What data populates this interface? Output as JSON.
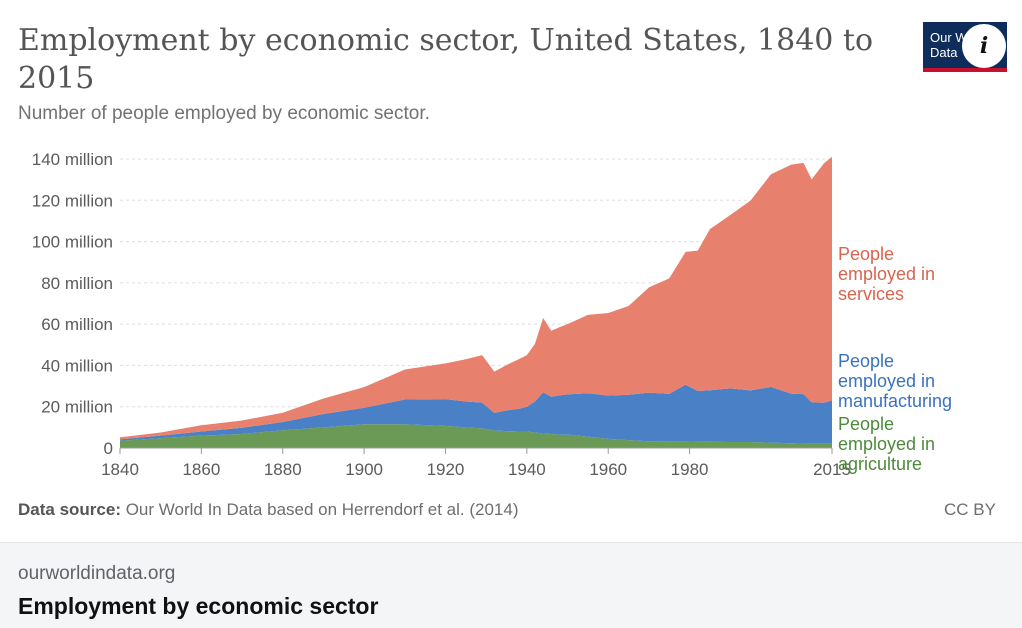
{
  "page": {
    "domain": "ourworldindata.org",
    "link_title": "Employment by economic sector"
  },
  "header": {
    "title": "Employment by economic sector, United States, 1840 to 2015",
    "subtitle": "Number of people employed by economic sector.",
    "logo_text": "Our World in Data",
    "info_icon": "info-icon",
    "info_label": "i"
  },
  "footer": {
    "source_label": "Data source:",
    "source_text": " Our World In Data based on Herrendorf et al. (2014)",
    "license": "CC BY"
  },
  "colors": {
    "services": "#e8806e",
    "manufacturing": "#4a80c6",
    "agriculture": "#6b9a57",
    "services_label": "#d8654f",
    "manufacturing_label": "#3a72be",
    "agriculture_label": "#4e8a3c",
    "axis_text": "#5b5b5b",
    "grid": "#dddddd"
  },
  "chart_data": {
    "type": "area",
    "stacked": true,
    "title": "Employment by economic sector, United States, 1840 to 2015",
    "subtitle": "Number of people employed by economic sector.",
    "xlabel": "",
    "ylabel": "",
    "xlim": [
      1840,
      2015
    ],
    "ylim": [
      0,
      140
    ],
    "y_unit": "million",
    "grid": true,
    "x_ticks": [
      {
        "value": 1840,
        "label": "1840"
      },
      {
        "value": 1860,
        "label": "1860"
      },
      {
        "value": 1880,
        "label": "1880"
      },
      {
        "value": 1900,
        "label": "1900"
      },
      {
        "value": 1920,
        "label": "1920"
      },
      {
        "value": 1940,
        "label": "1940"
      },
      {
        "value": 1960,
        "label": "1960"
      },
      {
        "value": 1980,
        "label": "1980"
      },
      {
        "value": 2015,
        "label": "2015"
      }
    ],
    "y_ticks": [
      {
        "value": 0,
        "label": "0"
      },
      {
        "value": 20,
        "label": "20 million"
      },
      {
        "value": 40,
        "label": "40 million"
      },
      {
        "value": 60,
        "label": "60 million"
      },
      {
        "value": 80,
        "label": "80 million"
      },
      {
        "value": 100,
        "label": "100 million"
      },
      {
        "value": 120,
        "label": "120 million"
      },
      {
        "value": 140,
        "label": "140 million"
      }
    ],
    "x": [
      1840,
      1850,
      1860,
      1870,
      1880,
      1890,
      1900,
      1910,
      1920,
      1925,
      1929,
      1932,
      1935,
      1938,
      1940,
      1942,
      1944,
      1946,
      1948,
      1950,
      1955,
      1960,
      1965,
      1970,
      1975,
      1979,
      1982,
      1985,
      1990,
      1995,
      2000,
      2005,
      2008,
      2010,
      2013,
      2015
    ],
    "series": [
      {
        "name": "People employed in agriculture",
        "label_lines": [
          "People",
          "employed in",
          "agriculture"
        ],
        "values": [
          3.5,
          4.8,
          6.0,
          6.8,
          8.6,
          10.0,
          11.5,
          11.5,
          10.7,
          10.0,
          9.5,
          8.5,
          8.2,
          8.0,
          8.0,
          7.5,
          7.0,
          6.8,
          6.5,
          6.5,
          5.5,
          4.4,
          3.8,
          3.3,
          3.2,
          3.2,
          3.1,
          3.0,
          2.9,
          2.9,
          2.6,
          2.3,
          2.1,
          2.1,
          2.1,
          2.1
        ]
      },
      {
        "name": "People employed in manufacturing",
        "label_lines": [
          "People",
          "employed in",
          "manufacturing"
        ],
        "values": [
          0.7,
          1.2,
          2.0,
          3.0,
          4.0,
          6.5,
          8.0,
          12.0,
          13.0,
          12.5,
          12.5,
          8.5,
          10.0,
          11.0,
          12.0,
          15.0,
          20.0,
          18.0,
          19.0,
          19.5,
          21.0,
          21.0,
          22.0,
          23.5,
          23.0,
          27.5,
          24.5,
          25.0,
          26.0,
          25.0,
          27.0,
          24.0,
          24.0,
          20.0,
          19.8,
          21.0
        ]
      },
      {
        "name": "People employed in services",
        "label_lines": [
          "People",
          "employed in",
          "services"
        ],
        "values": [
          1.0,
          1.5,
          3.0,
          3.5,
          4.5,
          7.5,
          10.0,
          14.5,
          17.3,
          20.5,
          23.0,
          20.0,
          22.0,
          24.0,
          25.0,
          28.0,
          36.0,
          32.0,
          33.0,
          34.0,
          38.0,
          40.0,
          43.0,
          51.0,
          56.0,
          64.3,
          68.0,
          78.0,
          84.0,
          92.0,
          103.0,
          111.0,
          112.0,
          108.0,
          116.0,
          118.0
        ]
      }
    ]
  }
}
